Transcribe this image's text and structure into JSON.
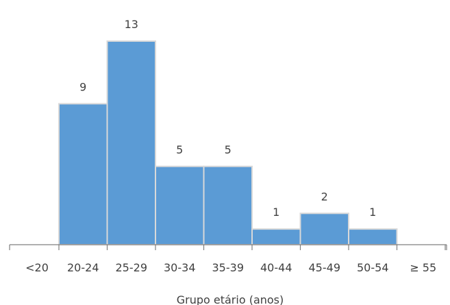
{
  "chart_data": {
    "type": "bar",
    "title": "",
    "xlabel": "Grupo etário (anos)",
    "ylabel": "",
    "categories": [
      "<20",
      "20-24",
      "25-29",
      "30-34",
      "35-39",
      "40-44",
      "45-49",
      "50-54",
      "≥ 55"
    ],
    "values": [
      0,
      9,
      13,
      5,
      5,
      1,
      2,
      1,
      0
    ],
    "data_labels": [
      "",
      "9",
      "13",
      "5",
      "5",
      "1",
      "2",
      "1",
      ""
    ],
    "ylim": [
      0,
      13
    ],
    "grid": false,
    "legend": "none",
    "colors": {
      "bar": "#5b9bd5",
      "bar_border": "#d9d9d9",
      "axis": "#7f7f7f",
      "text": "#404040"
    }
  }
}
